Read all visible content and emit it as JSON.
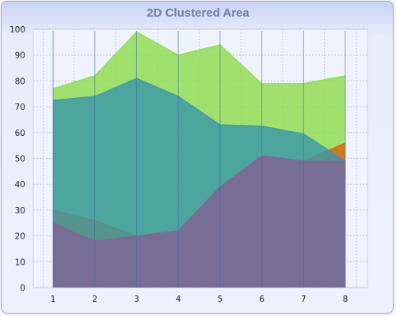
{
  "chart_data": {
    "type": "area",
    "title": "2D Clustered Area",
    "xlabel": "",
    "ylabel": "",
    "x": [
      1,
      2,
      3,
      4,
      5,
      6,
      7,
      8
    ],
    "ylim": [
      0,
      100
    ],
    "yticks": [
      0,
      10,
      20,
      30,
      40,
      50,
      60,
      70,
      80,
      90,
      100
    ],
    "grid": true,
    "legend": "none",
    "series": [
      {
        "values": [
          77,
          82,
          99,
          90,
          94,
          79,
          79,
          82
        ],
        "color": "#8fdc4c"
      },
      {
        "values": [
          30,
          26,
          20,
          22,
          39,
          51,
          49,
          56
        ],
        "color": "#d86612"
      },
      {
        "values": [
          72.5,
          74,
          81,
          74,
          63,
          62.5,
          59.5,
          49
        ],
        "color": "#3a98a8"
      },
      {
        "values": [
          25,
          18,
          20,
          22,
          39,
          51,
          49,
          49
        ],
        "color": "#7b6a96"
      }
    ]
  }
}
